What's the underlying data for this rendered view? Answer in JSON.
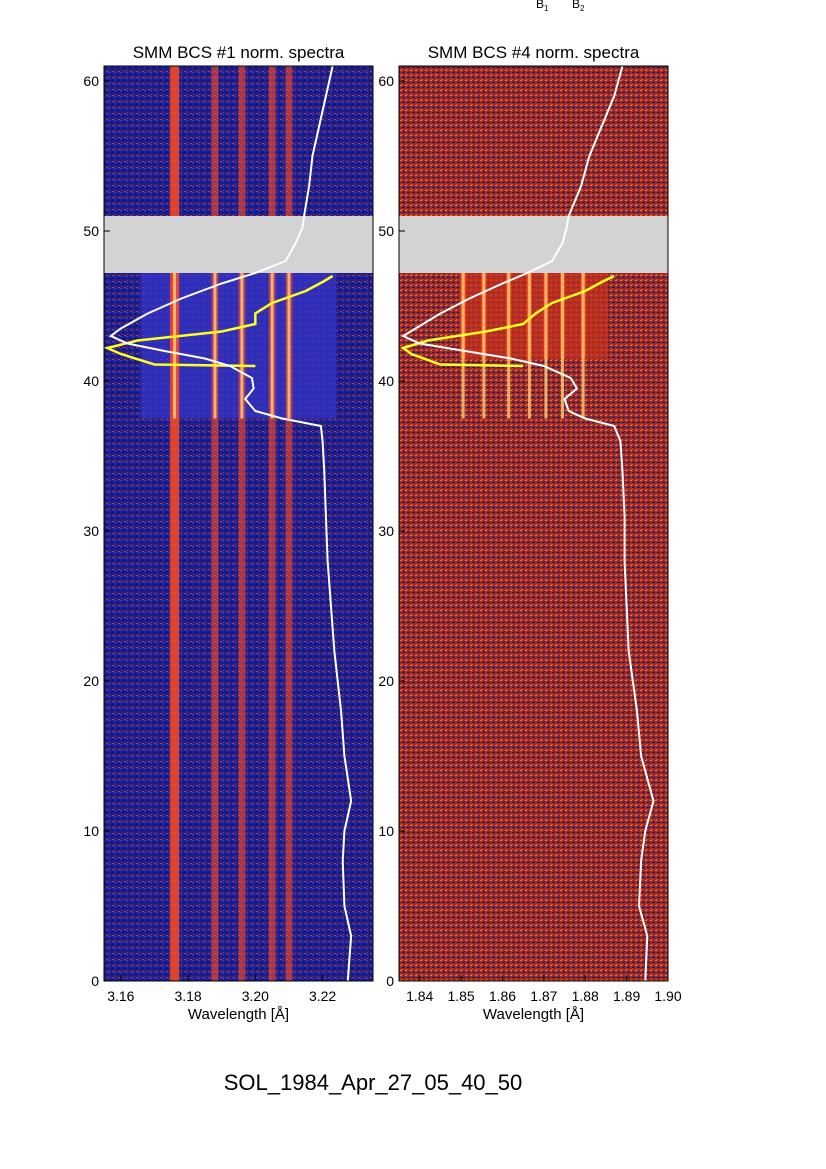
{
  "header": {
    "b1": "B",
    "b1_sub": "1",
    "b2": "B",
    "b2_sub": "2"
  },
  "footer": {
    "event_id": "SOL_1984_Apr_27_05_40_50"
  },
  "chart_data": [
    {
      "type": "heatmap",
      "title": "SMM BCS #1 norm. spectra",
      "xlabel": "Wavelength [Å]",
      "ylabel": "",
      "xlim": [
        3.155,
        3.235
      ],
      "ylim": [
        0,
        61
      ],
      "xticks": [
        "3.16",
        "3.18",
        "3.20",
        "3.22"
      ],
      "xtick_values": [
        3.16,
        3.18,
        3.2,
        3.22
      ],
      "yticks": [
        "0",
        "10",
        "20",
        "30",
        "40",
        "50",
        "60"
      ],
      "ytick_values": [
        0,
        10,
        20,
        30,
        40,
        50,
        60
      ],
      "data_gap": [
        47.2,
        51.0
      ],
      "colors": {
        "background": "#1a1c8c",
        "emission": "#ff4a1c",
        "core": "#ffd27a",
        "gap": "#d3d3d3",
        "lightcurve": "#ffffff",
        "derivative": "#ffff22"
      },
      "emission_lines": [
        3.176,
        3.188,
        3.196,
        3.205,
        3.21
      ],
      "lightcurve_white": [
        [
          0,
          3.2275
        ],
        [
          3,
          3.2285
        ],
        [
          5,
          3.2265
        ],
        [
          8,
          3.226
        ],
        [
          10,
          3.2265
        ],
        [
          12,
          3.2285
        ],
        [
          15,
          3.2265
        ],
        [
          18,
          3.2255
        ],
        [
          20,
          3.2245
        ],
        [
          22,
          3.2235
        ],
        [
          25,
          3.2225
        ],
        [
          28,
          3.2215
        ],
        [
          31,
          3.221
        ],
        [
          34,
          3.2205
        ],
        [
          36,
          3.22
        ],
        [
          37,
          3.2195
        ],
        [
          37.5,
          3.208
        ],
        [
          38,
          3.2
        ],
        [
          38.8,
          3.197
        ],
        [
          39.5,
          3.1995
        ],
        [
          40.2,
          3.199
        ],
        [
          41,
          3.1925
        ],
        [
          41.5,
          3.185
        ],
        [
          42,
          3.173
        ],
        [
          42.5,
          3.162
        ],
        [
          43,
          3.157
        ],
        [
          43.5,
          3.16
        ],
        [
          44.5,
          3.168
        ],
        [
          45.5,
          3.178
        ],
        [
          46.5,
          3.19
        ],
        [
          47.2,
          3.2
        ],
        [
          48,
          3.209
        ],
        [
          49.2,
          3.212
        ],
        [
          50.2,
          3.214
        ],
        [
          51,
          3.2145
        ],
        [
          53,
          3.216
        ],
        [
          55,
          3.217
        ],
        [
          57,
          3.219
        ],
        [
          59,
          3.221
        ],
        [
          61,
          3.223
        ]
      ],
      "derivative_yellow": [
        [
          41,
          3.2
        ],
        [
          41.1,
          3.17
        ],
        [
          41.8,
          3.16
        ],
        [
          42.2,
          3.156
        ],
        [
          42.7,
          3.165
        ],
        [
          43.3,
          3.19
        ],
        [
          43.8,
          3.2
        ],
        [
          44.5,
          3.2
        ],
        [
          45.2,
          3.205
        ],
        [
          46,
          3.215
        ],
        [
          46.6,
          3.22
        ],
        [
          47,
          3.223
        ]
      ]
    },
    {
      "type": "heatmap",
      "title": "SMM BCS #4 norm. spectra",
      "xlabel": "Wavelength [Å]",
      "ylabel": "",
      "xlim": [
        1.835,
        1.9
      ],
      "ylim": [
        0,
        61
      ],
      "xticks": [
        "1.84",
        "1.85",
        "1.86",
        "1.87",
        "1.88",
        "1.89",
        "1.90"
      ],
      "xtick_values": [
        1.84,
        1.85,
        1.86,
        1.87,
        1.88,
        1.89,
        1.9
      ],
      "yticks": [
        "0",
        "10",
        "20",
        "30",
        "40",
        "50",
        "60"
      ],
      "ytick_values": [
        0,
        10,
        20,
        30,
        40,
        50,
        60
      ],
      "data_gap": [
        47.2,
        51.0
      ],
      "colors": {
        "background": "#1a1c8c",
        "emission": "#ff4a1c",
        "core": "#ffd27a",
        "gap": "#d3d3d3",
        "lightcurve": "#ffffff",
        "derivative": "#ffff22"
      },
      "emission_lines": [
        1.8505,
        1.8555,
        1.8615,
        1.8665,
        1.8705,
        1.8745,
        1.8795
      ],
      "lightcurve_white": [
        [
          0,
          1.8945
        ],
        [
          3,
          1.895
        ],
        [
          5,
          1.893
        ],
        [
          8,
          1.8935
        ],
        [
          10,
          1.8945
        ],
        [
          12,
          1.8965
        ],
        [
          15,
          1.8935
        ],
        [
          18,
          1.8925
        ],
        [
          20,
          1.8915
        ],
        [
          22,
          1.8905
        ],
        [
          25,
          1.89
        ],
        [
          28,
          1.8895
        ],
        [
          31,
          1.8895
        ],
        [
          34,
          1.889
        ],
        [
          36,
          1.8885
        ],
        [
          37,
          1.887
        ],
        [
          37.5,
          1.88
        ],
        [
          38,
          1.876
        ],
        [
          38.8,
          1.875
        ],
        [
          39.5,
          1.878
        ],
        [
          40.2,
          1.8765
        ],
        [
          41,
          1.87
        ],
        [
          41.5,
          1.862
        ],
        [
          42,
          1.851
        ],
        [
          42.5,
          1.84
        ],
        [
          43,
          1.836
        ],
        [
          43.5,
          1.839
        ],
        [
          44.5,
          1.845
        ],
        [
          45.5,
          1.852
        ],
        [
          46.5,
          1.86
        ],
        [
          47.2,
          1.866
        ],
        [
          48,
          1.872
        ],
        [
          49.2,
          1.8745
        ],
        [
          50.2,
          1.8755
        ],
        [
          51,
          1.876
        ],
        [
          53,
          1.879
        ],
        [
          55,
          1.881
        ],
        [
          57,
          1.884
        ],
        [
          59,
          1.887
        ],
        [
          61,
          1.889
        ]
      ],
      "derivative_yellow": [
        [
          41,
          1.865
        ],
        [
          41.1,
          1.845
        ],
        [
          41.8,
          1.838
        ],
        [
          42.2,
          1.836
        ],
        [
          42.7,
          1.842
        ],
        [
          43.3,
          1.856
        ],
        [
          43.8,
          1.865
        ],
        [
          44.5,
          1.868
        ],
        [
          45.2,
          1.872
        ],
        [
          46,
          1.88
        ],
        [
          46.6,
          1.884
        ],
        [
          47,
          1.887
        ]
      ]
    }
  ]
}
